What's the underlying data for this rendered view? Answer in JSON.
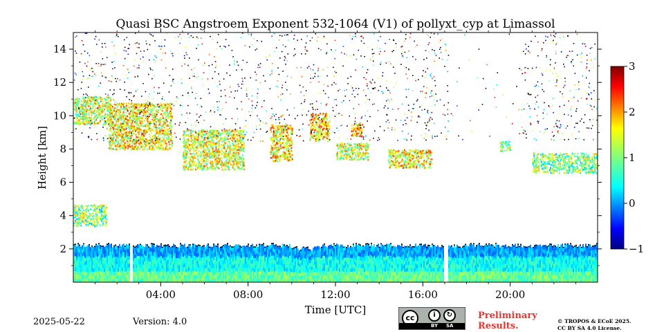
{
  "chart_data": {
    "type": "heatmap",
    "title": "Quasi BSC Angstroem Exponent 532-1064 (V1) of pollyxt_cyp at Limassol",
    "xlabel": "Time [UTC]",
    "ylabel": "Height [km]",
    "xlim": [
      0,
      24
    ],
    "ylim": [
      0,
      15
    ],
    "x_ticks": [
      {
        "value": 4,
        "label": "04:00"
      },
      {
        "value": 8,
        "label": "08:00"
      },
      {
        "value": 12,
        "label": "12:00"
      },
      {
        "value": 16,
        "label": "16:00"
      },
      {
        "value": 20,
        "label": "20:00"
      }
    ],
    "y_ticks": [
      {
        "value": 2,
        "label": "2"
      },
      {
        "value": 4,
        "label": "4"
      },
      {
        "value": 6,
        "label": "6"
      },
      {
        "value": 8,
        "label": "8"
      },
      {
        "value": 10,
        "label": "10"
      },
      {
        "value": 12,
        "label": "12"
      },
      {
        "value": 14,
        "label": "14"
      }
    ],
    "colorbar": {
      "range": [
        -1,
        3
      ],
      "colormap": "jet",
      "ticks": [
        {
          "value": 3,
          "label": "3"
        },
        {
          "value": 2,
          "label": "2"
        },
        {
          "value": 1,
          "label": "1"
        },
        {
          "value": 0,
          "label": "0"
        },
        {
          "value": -1,
          "label": "−1"
        }
      ]
    },
    "features": {
      "boundary_layer": {
        "x_start": 0,
        "x_end": 24,
        "top_km": 2.2,
        "typical_value": 0.3
      },
      "data_gaps_hours": [
        [
          2.55,
          2.7
        ],
        [
          16.95,
          17.1
        ]
      ],
      "aerosol_layers": [
        {
          "x_start": 0,
          "x_end": 1.5,
          "y_bottom": 3.4,
          "y_top": 4.7,
          "value": 1.0
        },
        {
          "x_start": 0,
          "x_end": 1.7,
          "y_bottom": 9.5,
          "y_top": 11.2,
          "value": 1.3
        },
        {
          "x_start": 1.6,
          "x_end": 4.5,
          "y_bottom": 8.0,
          "y_top": 10.8,
          "value": 1.5
        },
        {
          "x_start": 5.0,
          "x_end": 7.8,
          "y_bottom": 6.8,
          "y_top": 9.2,
          "value": 1.4
        },
        {
          "x_start": 9.0,
          "x_end": 10.0,
          "y_bottom": 7.3,
          "y_top": 9.5,
          "value": 1.6
        },
        {
          "x_start": 10.8,
          "x_end": 11.7,
          "y_bottom": 8.5,
          "y_top": 10.2,
          "value": 1.7
        },
        {
          "x_start": 12.7,
          "x_end": 13.2,
          "y_bottom": 8.8,
          "y_top": 9.6,
          "value": 1.8
        },
        {
          "x_start": 12.0,
          "x_end": 13.5,
          "y_bottom": 7.4,
          "y_top": 8.4,
          "value": 1.3
        },
        {
          "x_start": 14.4,
          "x_end": 16.4,
          "y_bottom": 6.9,
          "y_top": 8.0,
          "value": 1.5
        },
        {
          "x_start": 19.5,
          "x_end": 20.0,
          "y_bottom": 7.9,
          "y_top": 8.5,
          "value": 1.1
        },
        {
          "x_start": 21.0,
          "x_end": 24.0,
          "y_bottom": 6.6,
          "y_top": 7.8,
          "value": 1.0
        }
      ]
    }
  },
  "footer": {
    "date": "2025-05-22",
    "version": "Version: 4.0",
    "preliminary_line1": "Preliminary",
    "preliminary_line2": "Results.",
    "license_line1": "© TROPOS & ECoE 2025.",
    "license_line2": "CC BY SA 4.0 License.",
    "cc_label": "cc",
    "by_label": "BY",
    "sa_label": "SA",
    "prelim_color": "#e8362f"
  }
}
